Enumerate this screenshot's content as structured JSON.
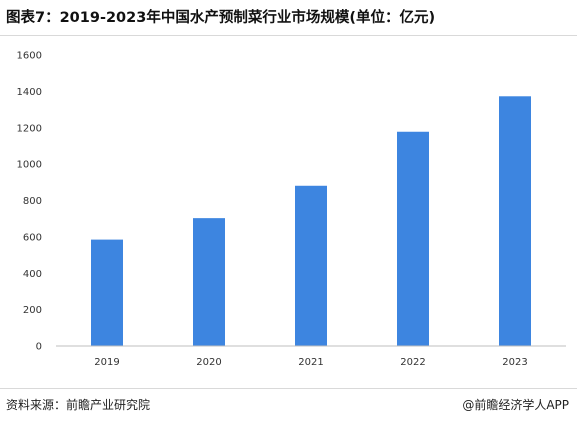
{
  "title": "图表7：2019-2023年中国水产预制菜行业市场规模(单位：亿元)",
  "footer": {
    "source": "资料来源：前瞻产业研究院",
    "brand": "@前瞻经济学人APP"
  },
  "colors": {
    "bar": "#3d85e0",
    "axis": "#bfbfbf"
  },
  "chart_data": {
    "type": "bar",
    "title": "图表7：2019-2023年中国水产预制菜行业市场规模(单位：亿元)",
    "xlabel": "",
    "ylabel": "",
    "categories": [
      "2019",
      "2020",
      "2021",
      "2022",
      "2023"
    ],
    "values": [
      585,
      703,
      881,
      1178,
      1373
    ],
    "ylim": [
      0,
      1600
    ],
    "yticks": [
      0,
      200,
      400,
      600,
      800,
      1000,
      1200,
      1400,
      1600
    ],
    "grid": false,
    "legend": "none"
  }
}
